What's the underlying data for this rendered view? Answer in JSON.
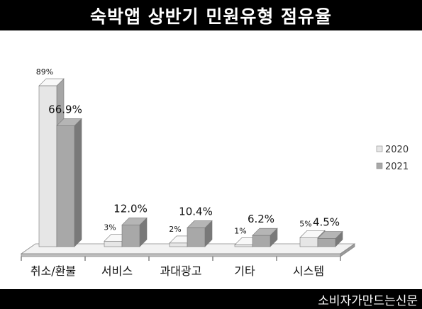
{
  "title": "숙박앱 상반기 민원유형 점유율",
  "footer": "소비자가만드는신문",
  "chart_data": {
    "type": "bar",
    "title": "숙박앱 상반기 민원유형 점유율",
    "categories": [
      "취소/환불",
      "서비스",
      "과대광고",
      "기타",
      "시스템"
    ],
    "series": [
      {
        "name": "2020",
        "values": [
          89,
          3,
          2,
          1,
          5
        ],
        "labels": [
          "89%",
          "3%",
          "2%",
          "1%",
          "5%"
        ],
        "color": "#e6e6e6"
      },
      {
        "name": "2021",
        "values": [
          66.9,
          12.0,
          10.4,
          6.2,
          4.5
        ],
        "labels": [
          "66.9%",
          "12.0%",
          "10.4%",
          "6.2%",
          "4.5%"
        ],
        "color": "#a8a8a8"
      }
    ],
    "ylim": [
      0,
      100
    ],
    "grid": false,
    "legend": "right",
    "style": "3d"
  }
}
